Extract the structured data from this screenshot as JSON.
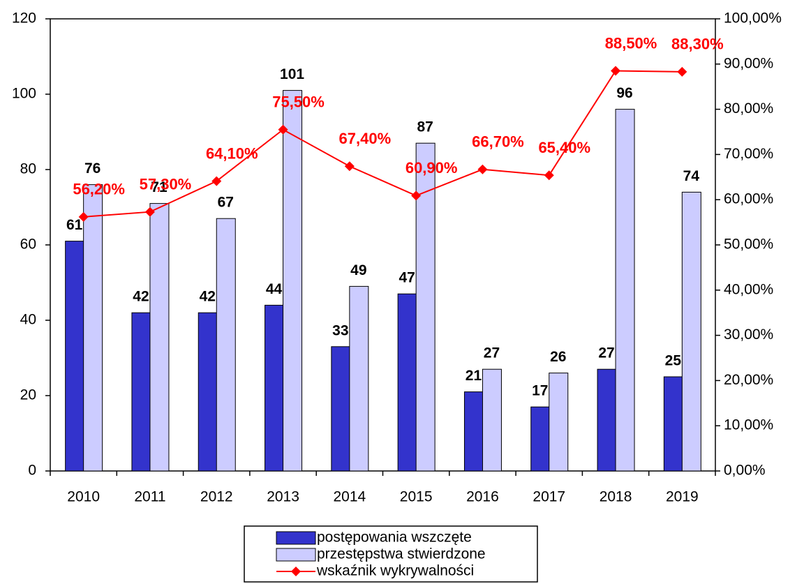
{
  "chart_data": {
    "type": "bar",
    "categories": [
      "2010",
      "2011",
      "2012",
      "2013",
      "2014",
      "2015",
      "2016",
      "2017",
      "2018",
      "2019"
    ],
    "series": [
      {
        "name": "postępowania wszczęte",
        "color": "#3333cc",
        "values": [
          61,
          42,
          42,
          44,
          33,
          47,
          21,
          17,
          27,
          25
        ]
      },
      {
        "name": "przestępstwa stwierdzone",
        "color": "#ccccff",
        "values": [
          76,
          71,
          67,
          101,
          49,
          87,
          27,
          26,
          96,
          74
        ]
      },
      {
        "name": "wskaźnik wykrywalności",
        "color": "#ff0000",
        "type": "line",
        "axis": "y2",
        "values": [
          56.2,
          57.3,
          64.1,
          75.5,
          67.4,
          60.9,
          66.7,
          65.4,
          88.5,
          88.3
        ],
        "value_labels": [
          "56,20%",
          "57,30%",
          "64,10%",
          "75,50%",
          "67,40%",
          "60,90%",
          "66,70%",
          "65,40%",
          "88,50%",
          "88,30%"
        ]
      }
    ],
    "ylim": [
      0,
      120
    ],
    "yticks": [
      0,
      20,
      40,
      60,
      80,
      100,
      120
    ],
    "y2lim": [
      0,
      100
    ],
    "y2ticks": [
      {
        "value": 0,
        "label": "0,00%"
      },
      {
        "value": 10,
        "label": "10,00%"
      },
      {
        "value": 20,
        "label": "20,00%"
      },
      {
        "value": 30,
        "label": "30,00%"
      },
      {
        "value": 40,
        "label": "40,00%"
      },
      {
        "value": 50,
        "label": "50,00%"
      },
      {
        "value": 60,
        "label": "60,00%"
      },
      {
        "value": 70,
        "label": "70,00%"
      },
      {
        "value": 80,
        "label": "80,00%"
      },
      {
        "value": 90,
        "label": "90,00%"
      },
      {
        "value": 100,
        "label": "100,00%"
      }
    ],
    "grid": false
  }
}
